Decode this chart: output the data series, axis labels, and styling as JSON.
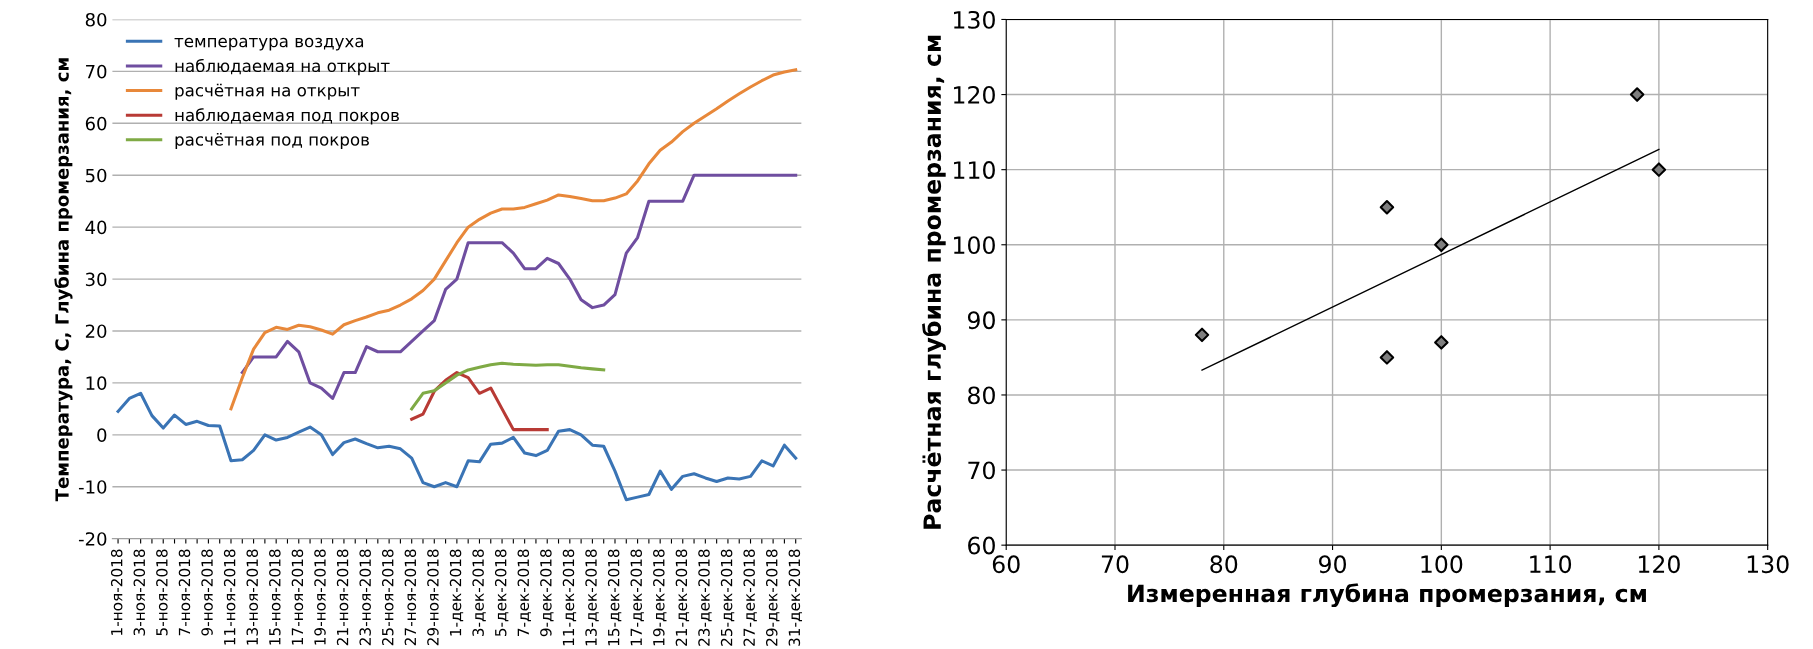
{
  "chart_data": [
    {
      "type": "line",
      "ylabel": "Температура, С, Глубина промерзания, см",
      "categories": [
        "1-ноя-2018",
        null,
        "3-ноя-2018",
        null,
        "5-ноя-2018",
        null,
        "7-ноя-2018",
        null,
        "9-ноя-2018",
        null,
        "11-ноя-2018",
        null,
        "13-ноя-2018",
        null,
        "15-ноя-2018",
        null,
        "17-ноя-2018",
        null,
        "19-ноя-2018",
        null,
        "21-ноя-2018",
        null,
        "23-ноя-2018",
        null,
        "25-ноя-2018",
        null,
        "27-ноя-2018",
        null,
        "29-ноя-2018",
        null,
        "1-дек-2018",
        null,
        "3-дек-2018",
        null,
        "5-дек-2018",
        null,
        "7-дек-2018",
        null,
        "9-дек-2018",
        null,
        "11-дек-2018",
        null,
        "13-дек-2018",
        null,
        "15-дек-2018",
        null,
        "17-дек-2018",
        null,
        "19-дек-2018",
        null,
        "21-дек-2018",
        null,
        "23-дек-2018",
        null,
        "25-дек-2018",
        null,
        "27-дек-2018",
        null,
        "29-дек-2018",
        null,
        "31-дек-2018"
      ],
      "series": [
        {
          "name": "температура воздуха",
          "color": "#3a74b5",
          "values": [
            4.5,
            7,
            8,
            3.7,
            1.3,
            3.8,
            2,
            2.6,
            1.8,
            1.7,
            -5,
            -4.8,
            -3,
            0,
            -1,
            -0.5,
            0.5,
            1.5,
            0,
            -3.8,
            -1.5,
            -0.8,
            -1.7,
            -2.5,
            -2.2,
            -2.7,
            -4.5,
            -9.2,
            -10,
            -9.2,
            -10,
            -5,
            -5.2,
            -1.8,
            -1.6,
            -0.5,
            -3.5,
            -4,
            -3,
            0.7,
            1,
            0,
            -2,
            -2.2,
            -7,
            -12.5,
            -12,
            -11.5,
            -7,
            -10.5,
            -8,
            -7.5,
            -8.3,
            -9,
            -8.3,
            -8.5,
            -8,
            -5,
            -6,
            -2,
            -4.5
          ]
        },
        {
          "name": "наблюдаемая на открыт",
          "color": "#6f4ea0",
          "values": [
            null,
            null,
            null,
            null,
            null,
            null,
            null,
            null,
            null,
            null,
            null,
            12,
            15,
            15,
            15,
            18,
            16,
            10,
            9,
            7,
            12,
            12,
            17,
            16,
            16,
            16,
            18,
            20,
            22,
            28,
            30,
            37,
            37,
            37,
            37,
            35,
            32,
            32,
            34,
            33,
            30,
            26,
            24.5,
            25,
            27,
            35,
            38,
            45,
            45,
            45,
            45,
            50,
            50,
            50,
            50,
            50,
            50,
            50,
            50,
            50,
            50
          ]
        },
        {
          "name": "расчётная на открыт",
          "color": "#e8883a",
          "values": [
            null,
            null,
            null,
            null,
            null,
            null,
            null,
            null,
            null,
            null,
            5,
            11,
            16.5,
            19.7,
            20.7,
            20.3,
            21.1,
            20.8,
            20.2,
            19.4,
            21.2,
            22,
            22.7,
            23.5,
            24,
            25,
            26.2,
            27.8,
            30,
            33.5,
            37,
            40,
            41.5,
            42.7,
            43.5,
            43.5,
            43.8,
            44.5,
            45.2,
            46.2,
            45.9,
            45.5,
            45.1,
            45.1,
            45.6,
            46.4,
            48.9,
            52.2,
            54.8,
            56.4,
            58.4,
            60,
            61.4,
            62.8,
            64.3,
            65.7,
            67,
            68.2,
            69.3,
            69.9,
            70.3
          ]
        },
        {
          "name": "наблюдаемая под покров",
          "color": "#b83a35",
          "values": [
            null,
            null,
            null,
            null,
            null,
            null,
            null,
            null,
            null,
            null,
            null,
            null,
            null,
            null,
            null,
            null,
            null,
            null,
            null,
            null,
            null,
            null,
            null,
            null,
            null,
            null,
            3,
            4,
            8.4,
            10.5,
            12,
            11,
            8,
            9,
            5,
            1,
            1,
            1,
            1,
            null,
            null,
            null,
            null,
            null,
            null,
            null,
            null,
            null,
            null,
            null,
            null,
            null,
            null,
            null,
            null,
            null,
            null,
            null,
            null,
            null,
            null
          ]
        },
        {
          "name": "расчётная под покров",
          "color": "#7faa45",
          "values": [
            null,
            null,
            null,
            null,
            null,
            null,
            null,
            null,
            null,
            null,
            null,
            null,
            null,
            null,
            null,
            null,
            null,
            null,
            null,
            null,
            null,
            null,
            null,
            null,
            null,
            null,
            5,
            8,
            8.5,
            10,
            11.5,
            12.5,
            13,
            13.5,
            13.8,
            13.6,
            13.5,
            13.4,
            13.5,
            13.5,
            13.2,
            12.9,
            12.7,
            12.5,
            null,
            null,
            null,
            null,
            null,
            null,
            null,
            null,
            null,
            null,
            null,
            null,
            null,
            null,
            null,
            null,
            null
          ]
        }
      ],
      "ylim": [
        -20,
        80
      ],
      "yticks": [
        -20,
        -10,
        0,
        10,
        20,
        30,
        40,
        50,
        60,
        70,
        80
      ],
      "grid": "y",
      "legend": "top left",
      "marker": "none",
      "line_style": "solid"
    },
    {
      "type": "scatter",
      "xlabel": "Измеренная глубина промерзания, см",
      "ylabel": "Расчётная глубина промерзания, см",
      "series": [
        {
          "type": "scatter",
          "color": "#7f7f7f",
          "x": [
            78,
            95,
            95,
            100,
            100,
            118,
            120
          ],
          "values": [
            88,
            105,
            85,
            100,
            87,
            120,
            110
          ],
          "marker": "diamond"
        },
        {
          "type": "line",
          "color": "#000000",
          "x": [
            78,
            120
          ],
          "values": [
            83.3,
            112.7
          ],
          "marker": "none"
        }
      ],
      "xlim": [
        60,
        130
      ],
      "xticks": [
        60,
        70,
        80,
        90,
        100,
        110,
        120,
        130
      ],
      "ylim": [
        60,
        130
      ],
      "yticks": [
        60,
        70,
        80,
        90,
        100,
        110,
        120,
        130
      ],
      "grid": true,
      "legend": false
    }
  ]
}
